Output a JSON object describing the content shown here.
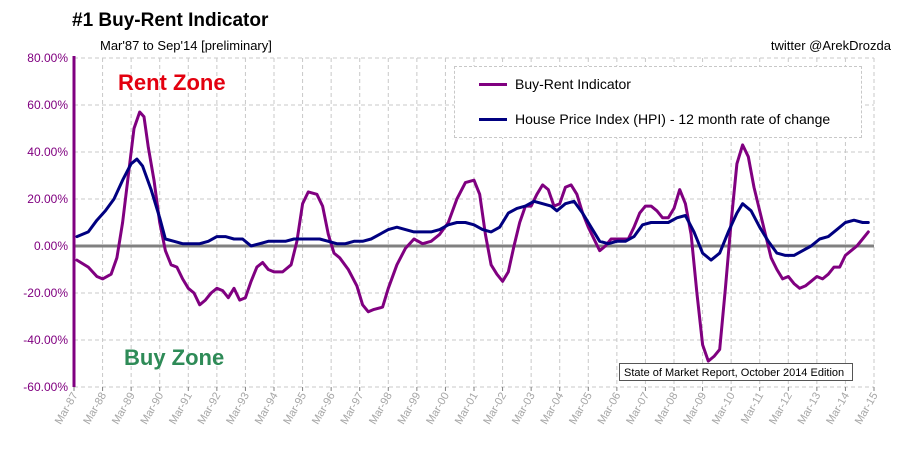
{
  "title": "#1 Buy-Rent Indicator",
  "subtitle": "Mar'87 to Sep'14 [preliminary]",
  "credit": "twitter @ArekDrozda",
  "zone_labels": {
    "rent": "Rent Zone",
    "buy": "Buy Zone"
  },
  "source_note": "State of Market Report, October 2014 Edition",
  "colors": {
    "buy_rent": "#800080",
    "hpi": "#000080",
    "rent_zone": "#e3000f",
    "buy_zone": "#2e8b57",
    "axis": "#800080",
    "zero_line": "#808080"
  },
  "chart_data": {
    "type": "line",
    "title": "#1 Buy-Rent Indicator",
    "xlabel": "",
    "ylabel": "",
    "x_ticks": [
      "Mar-87",
      "Mar-88",
      "Mar-89",
      "Mar-90",
      "Mar-91",
      "Mar-92",
      "Mar-93",
      "Mar-94",
      "Mar-95",
      "Mar-96",
      "Mar-97",
      "Mar-98",
      "Mar-99",
      "Mar-00",
      "Mar-01",
      "Mar-02",
      "Mar-03",
      "Mar-04",
      "Mar-05",
      "Mar-06",
      "Mar-07",
      "Mar-08",
      "Mar-09",
      "Mar-10",
      "Mar-11",
      "Mar-12",
      "Mar-13",
      "Mar-14",
      "Mar-15"
    ],
    "x_range": [
      1987,
      2015
    ],
    "y_ticks": [
      "80.00%",
      "60.00%",
      "40.00%",
      "20.00%",
      "0.00%",
      "-20.00%",
      "-40.00%",
      "-60.00%"
    ],
    "ylim": [
      -60,
      80
    ],
    "grid": true,
    "legend_position": "top-right",
    "series": [
      {
        "name": "Buy-Rent Indicator",
        "color": "#800080",
        "points": [
          [
            1987.1,
            -6
          ],
          [
            1987.5,
            -9
          ],
          [
            1987.8,
            -13
          ],
          [
            1988.0,
            -14
          ],
          [
            1988.3,
            -12
          ],
          [
            1988.5,
            -5
          ],
          [
            1988.7,
            10
          ],
          [
            1988.9,
            30
          ],
          [
            1989.1,
            50
          ],
          [
            1989.3,
            57
          ],
          [
            1989.45,
            55
          ],
          [
            1989.6,
            42
          ],
          [
            1989.8,
            28
          ],
          [
            1990.0,
            10
          ],
          [
            1990.2,
            -2
          ],
          [
            1990.4,
            -8
          ],
          [
            1990.6,
            -9
          ],
          [
            1990.8,
            -14
          ],
          [
            1991.0,
            -18
          ],
          [
            1991.2,
            -20
          ],
          [
            1991.4,
            -25
          ],
          [
            1991.6,
            -23
          ],
          [
            1991.8,
            -20
          ],
          [
            1992.0,
            -18
          ],
          [
            1992.2,
            -19
          ],
          [
            1992.4,
            -22
          ],
          [
            1992.6,
            -18
          ],
          [
            1992.8,
            -23
          ],
          [
            1993.0,
            -22
          ],
          [
            1993.2,
            -15
          ],
          [
            1993.4,
            -9
          ],
          [
            1993.6,
            -7
          ],
          [
            1993.8,
            -10
          ],
          [
            1994.0,
            -11
          ],
          [
            1994.3,
            -11
          ],
          [
            1994.6,
            -8
          ],
          [
            1994.8,
            2
          ],
          [
            1995.0,
            18
          ],
          [
            1995.2,
            23
          ],
          [
            1995.5,
            22
          ],
          [
            1995.7,
            17
          ],
          [
            1995.9,
            5
          ],
          [
            1996.1,
            -3
          ],
          [
            1996.3,
            -5
          ],
          [
            1996.6,
            -10
          ],
          [
            1996.9,
            -17
          ],
          [
            1997.1,
            -25
          ],
          [
            1997.3,
            -28
          ],
          [
            1997.5,
            -27
          ],
          [
            1997.8,
            -26
          ],
          [
            1998.0,
            -18
          ],
          [
            1998.3,
            -8
          ],
          [
            1998.6,
            -1
          ],
          [
            1998.9,
            3
          ],
          [
            1999.2,
            1
          ],
          [
            1999.5,
            2
          ],
          [
            1999.8,
            5
          ],
          [
            2000.1,
            10
          ],
          [
            2000.4,
            20
          ],
          [
            2000.7,
            27
          ],
          [
            2001.0,
            28
          ],
          [
            2001.2,
            22
          ],
          [
            2001.4,
            5
          ],
          [
            2001.6,
            -8
          ],
          [
            2001.8,
            -12
          ],
          [
            2002.0,
            -15
          ],
          [
            2002.2,
            -11
          ],
          [
            2002.4,
            0
          ],
          [
            2002.6,
            10
          ],
          [
            2002.8,
            17
          ],
          [
            2003.0,
            17
          ],
          [
            2003.2,
            22
          ],
          [
            2003.4,
            26
          ],
          [
            2003.6,
            24
          ],
          [
            2003.8,
            17
          ],
          [
            2004.0,
            18
          ],
          [
            2004.2,
            25
          ],
          [
            2004.4,
            26
          ],
          [
            2004.6,
            22
          ],
          [
            2004.8,
            14
          ],
          [
            2005.0,
            8
          ],
          [
            2005.2,
            3
          ],
          [
            2005.4,
            -2
          ],
          [
            2005.6,
            0
          ],
          [
            2005.8,
            3
          ],
          [
            2006.1,
            3
          ],
          [
            2006.4,
            3
          ],
          [
            2006.6,
            8
          ],
          [
            2006.8,
            14
          ],
          [
            2007.0,
            17
          ],
          [
            2007.2,
            17
          ],
          [
            2007.4,
            15
          ],
          [
            2007.6,
            12
          ],
          [
            2007.8,
            12
          ],
          [
            2008.0,
            16
          ],
          [
            2008.2,
            24
          ],
          [
            2008.4,
            18
          ],
          [
            2008.6,
            5
          ],
          [
            2008.8,
            -20
          ],
          [
            2009.0,
            -42
          ],
          [
            2009.2,
            -49
          ],
          [
            2009.4,
            -47
          ],
          [
            2009.6,
            -44
          ],
          [
            2009.8,
            -18
          ],
          [
            2010.0,
            10
          ],
          [
            2010.2,
            35
          ],
          [
            2010.4,
            43
          ],
          [
            2010.6,
            38
          ],
          [
            2010.8,
            25
          ],
          [
            2011.0,
            15
          ],
          [
            2011.2,
            5
          ],
          [
            2011.4,
            -5
          ],
          [
            2011.6,
            -10
          ],
          [
            2011.8,
            -14
          ],
          [
            2012.0,
            -13
          ],
          [
            2012.2,
            -16
          ],
          [
            2012.4,
            -18
          ],
          [
            2012.6,
            -17
          ],
          [
            2012.8,
            -15
          ],
          [
            2013.0,
            -13
          ],
          [
            2013.2,
            -14
          ],
          [
            2013.4,
            -12
          ],
          [
            2013.6,
            -9
          ],
          [
            2013.8,
            -9
          ],
          [
            2014.0,
            -4
          ],
          [
            2014.2,
            -2
          ],
          [
            2014.4,
            0
          ],
          [
            2014.6,
            3
          ],
          [
            2014.8,
            6
          ]
        ]
      },
      {
        "name": "House Price Index (HPI) - 12 month rate of change",
        "color": "#000080",
        "points": [
          [
            1987.1,
            4
          ],
          [
            1987.5,
            6
          ],
          [
            1987.8,
            11
          ],
          [
            1988.1,
            15
          ],
          [
            1988.4,
            20
          ],
          [
            1988.7,
            28
          ],
          [
            1989.0,
            35
          ],
          [
            1989.2,
            37
          ],
          [
            1989.4,
            34
          ],
          [
            1989.7,
            24
          ],
          [
            1990.0,
            12
          ],
          [
            1990.2,
            3
          ],
          [
            1990.5,
            2
          ],
          [
            1990.8,
            1
          ],
          [
            1991.1,
            1
          ],
          [
            1991.4,
            1
          ],
          [
            1991.7,
            2
          ],
          [
            1992.0,
            4
          ],
          [
            1992.3,
            4
          ],
          [
            1992.6,
            3
          ],
          [
            1992.9,
            3
          ],
          [
            1993.2,
            0
          ],
          [
            1993.5,
            1
          ],
          [
            1993.8,
            2
          ],
          [
            1994.1,
            2
          ],
          [
            1994.4,
            2
          ],
          [
            1994.7,
            3
          ],
          [
            1995.0,
            3
          ],
          [
            1995.3,
            3
          ],
          [
            1995.6,
            3
          ],
          [
            1995.9,
            2
          ],
          [
            1996.2,
            1
          ],
          [
            1996.5,
            1
          ],
          [
            1996.8,
            2
          ],
          [
            1997.1,
            2
          ],
          [
            1997.4,
            3
          ],
          [
            1997.7,
            5
          ],
          [
            1998.0,
            7
          ],
          [
            1998.3,
            8
          ],
          [
            1998.6,
            7
          ],
          [
            1998.9,
            6
          ],
          [
            1999.2,
            6
          ],
          [
            1999.5,
            6
          ],
          [
            1999.8,
            7
          ],
          [
            2000.1,
            9
          ],
          [
            2000.4,
            10
          ],
          [
            2000.7,
            10
          ],
          [
            2001.0,
            9
          ],
          [
            2001.3,
            7
          ],
          [
            2001.6,
            6
          ],
          [
            2001.9,
            8
          ],
          [
            2002.2,
            14
          ],
          [
            2002.5,
            16
          ],
          [
            2002.8,
            17
          ],
          [
            2003.1,
            19
          ],
          [
            2003.4,
            18
          ],
          [
            2003.7,
            17
          ],
          [
            2003.9,
            15
          ],
          [
            2004.2,
            18
          ],
          [
            2004.5,
            19
          ],
          [
            2004.8,
            14
          ],
          [
            2005.1,
            8
          ],
          [
            2005.4,
            2
          ],
          [
            2005.7,
            1
          ],
          [
            2006.0,
            2
          ],
          [
            2006.3,
            2
          ],
          [
            2006.6,
            4
          ],
          [
            2006.9,
            9
          ],
          [
            2007.2,
            10
          ],
          [
            2007.5,
            10
          ],
          [
            2007.8,
            10
          ],
          [
            2008.1,
            12
          ],
          [
            2008.4,
            13
          ],
          [
            2008.7,
            6
          ],
          [
            2009.0,
            -3
          ],
          [
            2009.3,
            -6
          ],
          [
            2009.6,
            -3
          ],
          [
            2009.9,
            6
          ],
          [
            2010.2,
            14
          ],
          [
            2010.4,
            18
          ],
          [
            2010.7,
            15
          ],
          [
            2011.0,
            8
          ],
          [
            2011.3,
            2
          ],
          [
            2011.6,
            -3
          ],
          [
            2011.9,
            -4
          ],
          [
            2012.2,
            -4
          ],
          [
            2012.5,
            -2
          ],
          [
            2012.8,
            0
          ],
          [
            2013.1,
            3
          ],
          [
            2013.4,
            4
          ],
          [
            2013.7,
            7
          ],
          [
            2014.0,
            10
          ],
          [
            2014.3,
            11
          ],
          [
            2014.6,
            10
          ],
          [
            2014.8,
            10
          ]
        ]
      }
    ]
  }
}
